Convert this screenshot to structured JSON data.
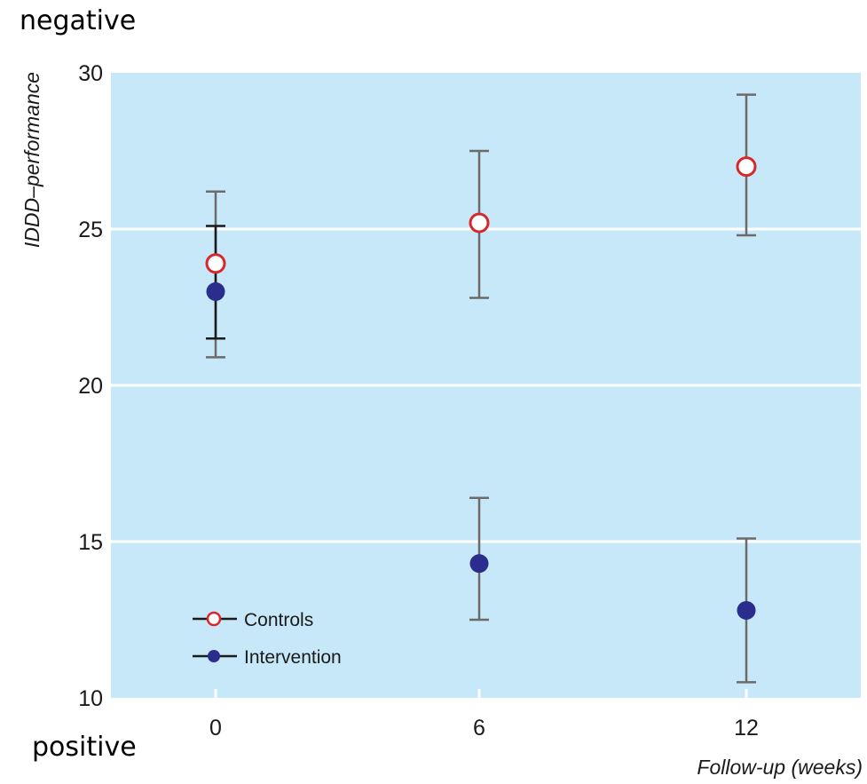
{
  "annotations": {
    "top": "negative",
    "bottom": "positive"
  },
  "chart_data": {
    "type": "scatter",
    "title": "",
    "xlabel": "Follow-up (weeks)",
    "ylabel": "IDDD–performance",
    "categories": [
      "0",
      "6",
      "12"
    ],
    "ylim": [
      10,
      30
    ],
    "yticks": [
      10,
      15,
      20,
      25,
      30
    ],
    "grid": true,
    "legend_position": "bottom-left",
    "series": [
      {
        "name": "Controls",
        "marker": "open-circle",
        "color": "#d9262b",
        "values": [
          23.9,
          25.2,
          27.0
        ],
        "error_low": [
          20.9,
          22.8,
          24.8
        ],
        "error_high": [
          26.2,
          27.5,
          29.3
        ]
      },
      {
        "name": "Intervention",
        "marker": "filled-circle",
        "color": "#2a2d8c",
        "values": [
          23.0,
          14.3,
          12.8
        ],
        "error_low": [
          21.5,
          12.5,
          10.5
        ],
        "error_high": [
          25.1,
          16.4,
          15.1
        ]
      }
    ],
    "colors": {
      "plot_background": "#c7e8f8",
      "gridline": "#ffffff",
      "error_bar": "#6b6b6b",
      "error_bar_dark": "#1a1a1a"
    }
  }
}
